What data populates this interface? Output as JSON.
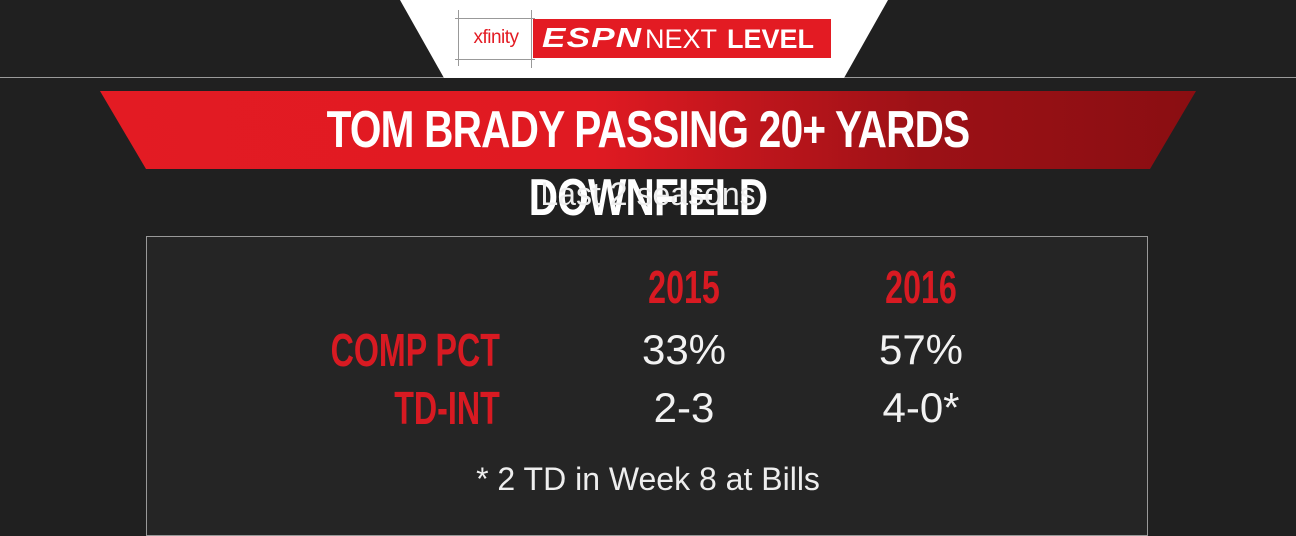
{
  "header": {
    "sponsor": "xfinity",
    "brand": "ESPN",
    "brand_next": "NEXT",
    "brand_level": "LEVEL"
  },
  "banner": {
    "title": "TOM BRADY PASSING 20+ YARDS DOWNFIELD",
    "subtitle": "Last 2 seasons"
  },
  "table": {
    "columns": [
      "2015",
      "2016"
    ],
    "rows": [
      {
        "label": "COMP PCT",
        "values": [
          "33%",
          "57%"
        ]
      },
      {
        "label": "TD-INT",
        "values": [
          "2-3",
          "4-0*"
        ]
      }
    ],
    "footnote": "* 2 TD in Week 8 at Bills"
  },
  "colors": {
    "accent_red": "#e31b23",
    "background": "#202020",
    "text": "#ffffff"
  }
}
